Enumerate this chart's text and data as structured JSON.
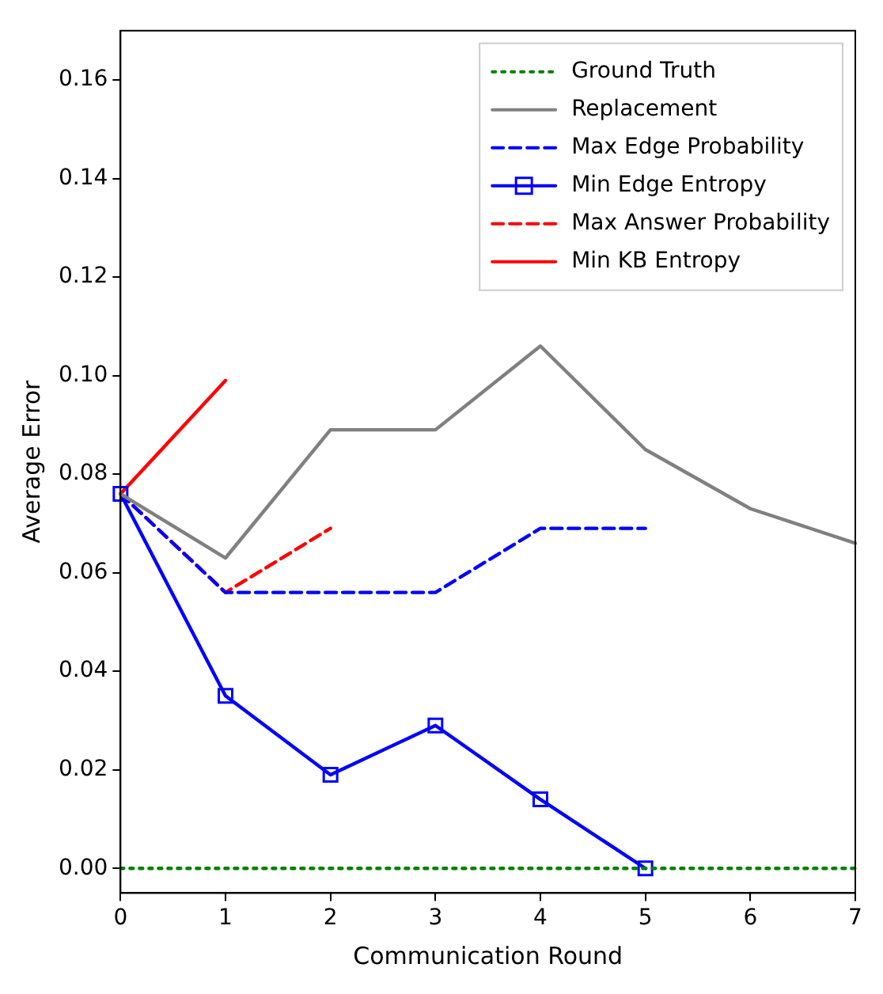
{
  "chart_data": {
    "type": "line",
    "xlabel": "Communication Round",
    "ylabel": "Average Error",
    "xlim": [
      0,
      7
    ],
    "xticks": [
      0,
      1,
      2,
      3,
      4,
      5,
      6,
      7
    ],
    "ylim": [
      -0.005,
      0.17
    ],
    "yticks": [
      {
        "value": 0,
        "label": "0.00"
      },
      {
        "value": 0.02,
        "label": "0.02"
      },
      {
        "value": 0.04,
        "label": "0.04"
      },
      {
        "value": 0.06,
        "label": "0.06"
      },
      {
        "value": 0.08,
        "label": "0.08"
      },
      {
        "value": 0.1,
        "label": "0.10"
      },
      {
        "value": 0.12,
        "label": "0.12"
      },
      {
        "value": 0.14,
        "label": "0.14"
      },
      {
        "value": 0.16,
        "label": "0.16"
      }
    ],
    "grid": false,
    "legend": "top right",
    "series": [
      {
        "name": "Ground Truth",
        "color": "#008000",
        "line_style": "dotted",
        "x": [
          0,
          1,
          2,
          3,
          4,
          5,
          6,
          7
        ],
        "values": [
          0,
          0,
          0,
          0,
          0,
          0,
          0,
          0
        ]
      },
      {
        "name": "Replacement",
        "color": "#808080",
        "line_style": "solid",
        "x": [
          0,
          1,
          2,
          3,
          4,
          5,
          6,
          7
        ],
        "values": [
          0.076,
          0.063,
          0.089,
          0.089,
          0.106,
          0.085,
          0.073,
          0.066
        ]
      },
      {
        "name": "Max Edge Probability",
        "color": "#0000ff",
        "line_style": "dashed",
        "x": [
          0,
          1,
          2,
          3,
          4,
          5
        ],
        "values": [
          0.076,
          0.056,
          0.056,
          0.056,
          0.069,
          0.069
        ]
      },
      {
        "name": "Min Edge Entropy",
        "color": "#0000ff",
        "line_style": "solid",
        "marker": "square",
        "x": [
          0,
          1,
          2,
          3,
          4,
          5
        ],
        "values": [
          0.076,
          0.035,
          0.019,
          0.029,
          0.014,
          0
        ]
      },
      {
        "name": "Max Answer Probability",
        "color": "#ff0000",
        "line_style": "dashed",
        "x": [
          0,
          1,
          2
        ],
        "values": [
          0.076,
          0.056,
          0.069
        ]
      },
      {
        "name": "Min KB Entropy",
        "color": "#ff0000",
        "line_style": "solid",
        "x": [
          0,
          1
        ],
        "values": [
          0.076,
          0.099
        ]
      }
    ]
  }
}
